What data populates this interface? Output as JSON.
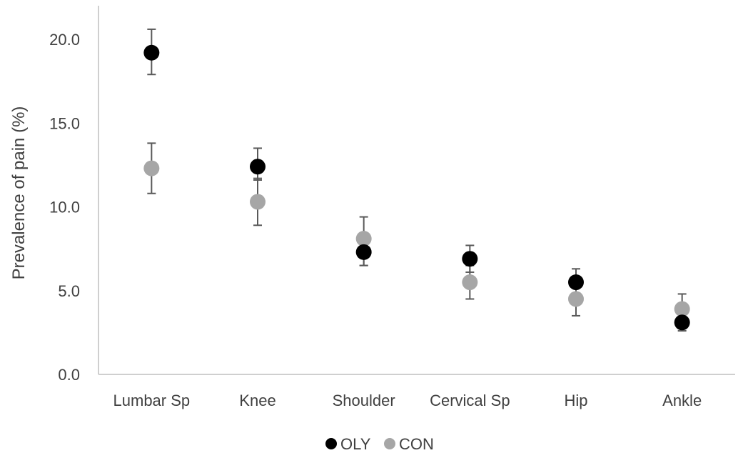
{
  "chart_data": {
    "type": "scatter",
    "title": "",
    "xlabel": "",
    "ylabel": "Prevalence of pain (%)",
    "categories": [
      "Lumbar Sp",
      "Knee",
      "Shoulder",
      "Cervical Sp",
      "Hip",
      "Ankle"
    ],
    "ylim": [
      0,
      20
    ],
    "yticks": [
      "0.0",
      "5.0",
      "10.0",
      "15.0",
      "20.0"
    ],
    "grid": false,
    "legend_position": "bottom",
    "series": [
      {
        "name": "OLY",
        "color": "#000000",
        "values": [
          19.2,
          12.4,
          7.3,
          6.9,
          5.5,
          3.1
        ],
        "err_low": [
          1.3,
          0.8,
          0.8,
          0.8,
          0.8,
          0.5
        ],
        "err_high": [
          1.4,
          1.1,
          0.8,
          0.8,
          0.8,
          0.5
        ]
      },
      {
        "name": "CON",
        "color": "#a6a6a6",
        "values": [
          12.3,
          10.3,
          8.1,
          5.5,
          4.5,
          3.9
        ],
        "err_low": [
          1.5,
          1.4,
          1.6,
          1.0,
          1.0,
          1.0
        ],
        "err_high": [
          1.5,
          1.4,
          1.3,
          1.0,
          1.0,
          0.9
        ]
      }
    ],
    "error_bar_color": "#595959",
    "axis_color": "#bfbfbf"
  }
}
